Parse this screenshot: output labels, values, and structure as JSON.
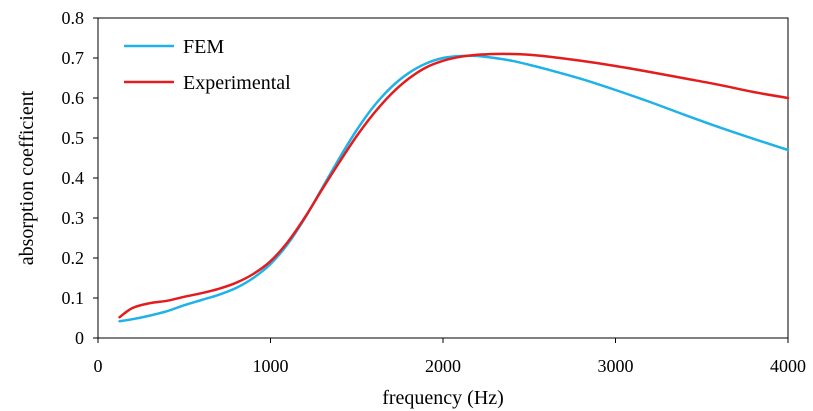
{
  "chart_data": {
    "type": "line",
    "title": "",
    "xlabel": "frequency (Hz)",
    "ylabel": "absorption coefficient",
    "xlim": [
      0,
      4000
    ],
    "ylim": [
      0,
      0.8
    ],
    "x_ticks": [
      "0",
      "1000",
      "2000",
      "3000",
      "4000"
    ],
    "y_ticks": [
      "0",
      "0.1",
      "0.2",
      "0.3",
      "0.4",
      "0.5",
      "0.6",
      "0.7",
      "0.8"
    ],
    "grid": false,
    "legend_position": "top-left",
    "series": [
      {
        "name": "FEM",
        "color": "#1fb2e8",
        "x": [
          125,
          200,
          300,
          400,
          500,
          600,
          700,
          800,
          900,
          1000,
          1100,
          1200,
          1300,
          1400,
          1500,
          1600,
          1700,
          1800,
          1900,
          2000,
          2100,
          2200,
          2300,
          2400,
          2500,
          2600,
          2800,
          3000,
          3200,
          3400,
          3600,
          3800,
          4000
        ],
        "y": [
          0.042,
          0.047,
          0.056,
          0.067,
          0.082,
          0.095,
          0.108,
          0.125,
          0.15,
          0.185,
          0.235,
          0.3,
          0.375,
          0.45,
          0.52,
          0.58,
          0.627,
          0.662,
          0.686,
          0.7,
          0.705,
          0.705,
          0.7,
          0.693,
          0.683,
          0.672,
          0.648,
          0.62,
          0.59,
          0.558,
          0.527,
          0.498,
          0.47
        ]
      },
      {
        "name": "Experimental",
        "color": "#e31d1d",
        "x": [
          125,
          200,
          300,
          400,
          500,
          600,
          700,
          800,
          900,
          1000,
          1100,
          1200,
          1300,
          1400,
          1500,
          1600,
          1700,
          1800,
          1900,
          2000,
          2100,
          2200,
          2300,
          2400,
          2500,
          2600,
          2800,
          3000,
          3200,
          3400,
          3600,
          3800,
          4000
        ],
        "y": [
          0.052,
          0.075,
          0.087,
          0.093,
          0.103,
          0.112,
          0.123,
          0.138,
          0.16,
          0.192,
          0.24,
          0.302,
          0.372,
          0.44,
          0.505,
          0.562,
          0.61,
          0.648,
          0.676,
          0.693,
          0.703,
          0.708,
          0.71,
          0.71,
          0.708,
          0.704,
          0.693,
          0.68,
          0.665,
          0.649,
          0.633,
          0.615,
          0.6
        ]
      }
    ]
  }
}
